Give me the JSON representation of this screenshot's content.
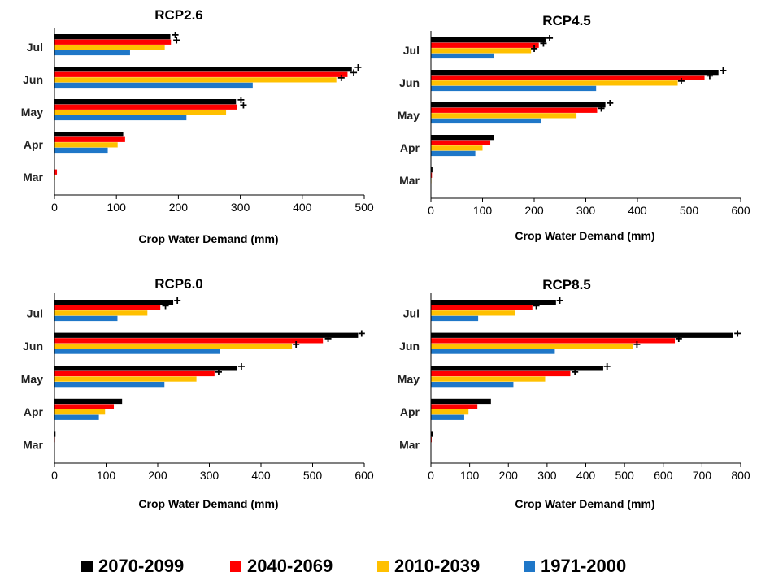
{
  "colors": {
    "2070-2099": "#000000",
    "2040-2069": "#ff0000",
    "2010-2039": "#ffc000",
    "1971-2000": "#1f77c8"
  },
  "legend": [
    "2070-2099",
    "2040-2069",
    "2010-2039",
    "1971-2000"
  ],
  "chart_data": [
    {
      "type": "bar",
      "orientation": "horizontal",
      "title": "RCP2.6",
      "xlabel": "Crop Water Demand (mm)",
      "categories": [
        "Jul",
        "Jun",
        "May",
        "Apr",
        "Mar"
      ],
      "xlim": [
        0,
        500
      ],
      "xticks": [
        0,
        100,
        200,
        300,
        400,
        500
      ],
      "series": [
        {
          "name": "2070-2099",
          "values": [
            187,
            480,
            293,
            111,
            0
          ]
        },
        {
          "name": "2040-2069",
          "values": [
            188,
            473,
            295,
            114,
            4
          ]
        },
        {
          "name": "2010-2039",
          "values": [
            178,
            455,
            277,
            102,
            1
          ]
        },
        {
          "name": "1971-2000",
          "values": [
            122,
            320,
            213,
            86,
            0
          ]
        }
      ],
      "markers": [
        {
          "category": "Jul",
          "values": [
            195,
            197
          ]
        },
        {
          "category": "Jun",
          "values": [
            490,
            483,
            463
          ]
        },
        {
          "category": "May",
          "values": [
            301,
            305
          ]
        }
      ]
    },
    {
      "type": "bar",
      "orientation": "horizontal",
      "title": "RCP4.5",
      "xlabel": "Crop Water Demand (mm)",
      "categories": [
        "Jul",
        "Jun",
        "May",
        "Apr",
        "Mar"
      ],
      "xlim": [
        0,
        600
      ],
      "xticks": [
        0,
        100,
        200,
        300,
        400,
        500,
        600
      ],
      "series": [
        {
          "name": "2070-2099",
          "values": [
            222,
            557,
            338,
            122,
            3
          ]
        },
        {
          "name": "2040-2069",
          "values": [
            209,
            530,
            322,
            115,
            2
          ]
        },
        {
          "name": "2010-2039",
          "values": [
            194,
            478,
            282,
            100,
            1
          ]
        },
        {
          "name": "1971-2000",
          "values": [
            122,
            320,
            213,
            86,
            0
          ]
        }
      ],
      "markers": [
        {
          "category": "Jul",
          "values": [
            230,
            218,
            200
          ]
        },
        {
          "category": "Jun",
          "values": [
            566,
            540,
            485
          ]
        },
        {
          "category": "May",
          "values": [
            347,
            330
          ]
        }
      ]
    },
    {
      "type": "bar",
      "orientation": "horizontal",
      "title": "RCP6.0",
      "xlabel": "Crop Water Demand (mm)",
      "categories": [
        "Jul",
        "Jun",
        "May",
        "Apr",
        "Mar"
      ],
      "xlim": [
        0,
        600
      ],
      "xticks": [
        0,
        100,
        200,
        300,
        400,
        500,
        600
      ],
      "series": [
        {
          "name": "2070-2099",
          "values": [
            230,
            588,
            353,
            131,
            2
          ]
        },
        {
          "name": "2040-2069",
          "values": [
            205,
            520,
            310,
            115,
            1
          ]
        },
        {
          "name": "2010-2039",
          "values": [
            180,
            460,
            275,
            98,
            0
          ]
        },
        {
          "name": "1971-2000",
          "values": [
            122,
            320,
            213,
            86,
            0
          ]
        }
      ],
      "markers": [
        {
          "category": "Jul",
          "values": [
            238,
            215
          ]
        },
        {
          "category": "Jun",
          "values": [
            595,
            530,
            468
          ]
        },
        {
          "category": "May",
          "values": [
            362,
            318
          ]
        }
      ]
    },
    {
      "type": "bar",
      "orientation": "horizontal",
      "title": "RCP8.5",
      "xlabel": "Crop Water Demand (mm)",
      "categories": [
        "Jul",
        "Jun",
        "May",
        "Apr",
        "Mar"
      ],
      "xlim": [
        0,
        800
      ],
      "xticks": [
        0,
        100,
        200,
        300,
        400,
        500,
        600,
        700,
        800
      ],
      "series": [
        {
          "name": "2070-2099",
          "values": [
            323,
            780,
            445,
            155,
            5
          ]
        },
        {
          "name": "2040-2069",
          "values": [
            262,
            630,
            360,
            120,
            2
          ]
        },
        {
          "name": "2010-2039",
          "values": [
            218,
            522,
            295,
            97,
            1
          ]
        },
        {
          "name": "1971-2000",
          "values": [
            122,
            320,
            213,
            86,
            0
          ]
        }
      ],
      "markers": [
        {
          "category": "Jul",
          "values": [
            333,
            272
          ]
        },
        {
          "category": "Jun",
          "values": [
            792,
            640,
            532
          ]
        },
        {
          "category": "May",
          "values": [
            455,
            372
          ]
        }
      ]
    }
  ]
}
